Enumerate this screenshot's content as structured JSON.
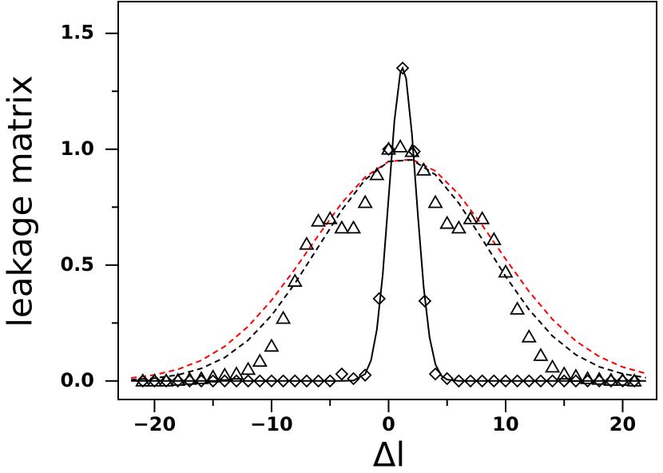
{
  "chart_data": {
    "type": "scatter",
    "x_label": "Δl",
    "y_label": "leakage matrix",
    "xlim": [
      -23.1,
      22.9
    ],
    "ylim": [
      -0.08,
      1.637
    ],
    "xticks": [
      {
        "value": -20,
        "label": "−20"
      },
      {
        "value": -10,
        "label": "−10"
      },
      0,
      10,
      20
    ],
    "yticks": [
      {
        "value": 0,
        "label": "0.0"
      },
      {
        "value": 0.5,
        "label": "0.5"
      },
      {
        "value": 1,
        "label": "1.0"
      },
      {
        "value": 1.5,
        "label": "1.5"
      }
    ],
    "xminorticks": [
      -15,
      -5,
      5,
      15
    ],
    "yminorticks": [
      0.25,
      0.75,
      1.25
    ],
    "series": [
      {
        "color": "#ff0000",
        "marker": "none",
        "dashed": true,
        "x": [
          -22,
          -20,
          -18,
          -16,
          -14,
          -12,
          -10,
          -8,
          -6,
          -4,
          -2,
          0,
          2,
          4,
          6,
          8,
          10,
          12,
          14,
          16,
          18,
          20,
          22
        ],
        "values": [
          0.013,
          0.026,
          0.05,
          0.089,
          0.149,
          0.235,
          0.348,
          0.483,
          0.628,
          0.768,
          0.88,
          0.947,
          0.956,
          0.906,
          0.805,
          0.672,
          0.526,
          0.386,
          0.266,
          0.172,
          0.105,
          0.06,
          0.032
        ]
      },
      {
        "color": "#000000",
        "marker": "none",
        "dashed": true,
        "x": [
          -22,
          -20,
          -18,
          -16,
          -14,
          -12,
          -10,
          -8,
          -6,
          -4,
          -2,
          0,
          2,
          4,
          6,
          8,
          10,
          12,
          14,
          16,
          18,
          20,
          22
        ],
        "values": [
          0.005,
          0.012,
          0.026,
          0.054,
          0.101,
          0.176,
          0.283,
          0.421,
          0.579,
          0.737,
          0.869,
          0.947,
          0.954,
          0.89,
          0.767,
          0.612,
          0.451,
          0.308,
          0.194,
          0.113,
          0.061,
          0.031,
          0.014
        ]
      },
      {
        "color": "#000000",
        "marker": "none",
        "dashed": false,
        "x": [
          -22,
          -4,
          -3,
          -2,
          -1.5,
          -1,
          -0.5,
          0,
          0.5,
          1,
          1.2,
          1.5,
          2,
          2.5,
          3,
          3.5,
          4,
          4.5,
          5,
          6,
          22
        ],
        "values": [
          0,
          0,
          0.002,
          0.03,
          0.089,
          0.222,
          0.459,
          0.789,
          1.124,
          1.33,
          1.35,
          1.305,
          1.063,
          0.718,
          0.403,
          0.188,
          0.072,
          0.023,
          0.006,
          0,
          0
        ]
      },
      {
        "color": "#000000",
        "marker": "triangle",
        "dashed": false,
        "x": [
          -21,
          -20,
          -19,
          -18,
          -17,
          -16,
          -15,
          -14,
          -13,
          -12,
          -11,
          -10,
          -9,
          -8,
          -7,
          -6,
          -5,
          -4,
          -3,
          -2,
          -1,
          0,
          1,
          2,
          3,
          4,
          5,
          6,
          7,
          8,
          9,
          10,
          11,
          12,
          13,
          14,
          15,
          16,
          17,
          18,
          19,
          20,
          21
        ],
        "values": [
          0,
          0,
          0,
          0.003,
          0.007,
          0.01,
          0.017,
          0.025,
          0.03,
          0.05,
          0.085,
          0.15,
          0.27,
          0.43,
          0.59,
          0.69,
          0.7,
          0.66,
          0.66,
          0.77,
          0.89,
          1.0,
          1.01,
          0.99,
          0.91,
          0.77,
          0.68,
          0.66,
          0.7,
          0.7,
          0.61,
          0.47,
          0.31,
          0.19,
          0.11,
          0.06,
          0.03,
          0.02,
          0.01,
          0.007,
          0.003,
          0.003,
          0
        ]
      },
      {
        "color": "#000000",
        "marker": "diamond",
        "dashed": false,
        "x": [
          -21,
          -20,
          -19,
          -18,
          -17,
          -16,
          -15,
          -14,
          -13,
          -12,
          -11,
          -10,
          -9,
          -8,
          -7,
          -6,
          -5,
          -4,
          -3,
          -2,
          -0.8,
          0,
          1.2,
          2.2,
          3.1,
          4,
          5,
          6,
          7,
          8,
          9,
          10,
          11,
          12,
          13,
          14,
          15,
          16,
          17,
          18,
          19,
          20,
          21
        ],
        "values": [
          0,
          0,
          0,
          0,
          0,
          0,
          0,
          0,
          0,
          0,
          0,
          0,
          0,
          0,
          0,
          0,
          0,
          0.03,
          0.01,
          0.025,
          0.355,
          1.0,
          1.35,
          0.99,
          0.345,
          0.03,
          0.01,
          0,
          0,
          0,
          0,
          0,
          0,
          0,
          0,
          0,
          0,
          0,
          0,
          0,
          0,
          0,
          0
        ]
      }
    ]
  }
}
